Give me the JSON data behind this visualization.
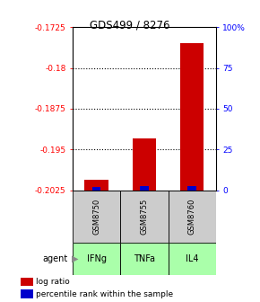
{
  "title": "GDS499 / 8276",
  "samples": [
    "GSM8750",
    "GSM8755",
    "GSM8760"
  ],
  "agents": [
    "IFNg",
    "TNFa",
    "IL4"
  ],
  "log_ratios": [
    -0.2005,
    -0.193,
    -0.1755
  ],
  "percentile_ranks": [
    2.0,
    2.5,
    2.5
  ],
  "baseline": -0.2025,
  "ylim_left": [
    -0.2025,
    -0.1725
  ],
  "ylim_right": [
    0,
    100
  ],
  "yticks_left": [
    -0.2025,
    -0.195,
    -0.1875,
    -0.18,
    -0.1725
  ],
  "ytick_labels_left": [
    "-0.2025",
    "-0.195",
    "-0.1875",
    "-0.18",
    "-0.1725"
  ],
  "yticks_right": [
    0,
    25,
    50,
    75,
    100
  ],
  "ytick_labels_right": [
    "0",
    "25",
    "50",
    "75",
    "100%"
  ],
  "bar_color_red": "#cc0000",
  "bar_color_blue": "#0000cc",
  "agent_color": "#aaffaa",
  "sample_bg": "#cccccc",
  "legend_red": "log ratio",
  "legend_blue": "percentile rank within the sample",
  "bar_width": 0.5,
  "figsize": [
    2.9,
    3.36
  ],
  "dpi": 100
}
